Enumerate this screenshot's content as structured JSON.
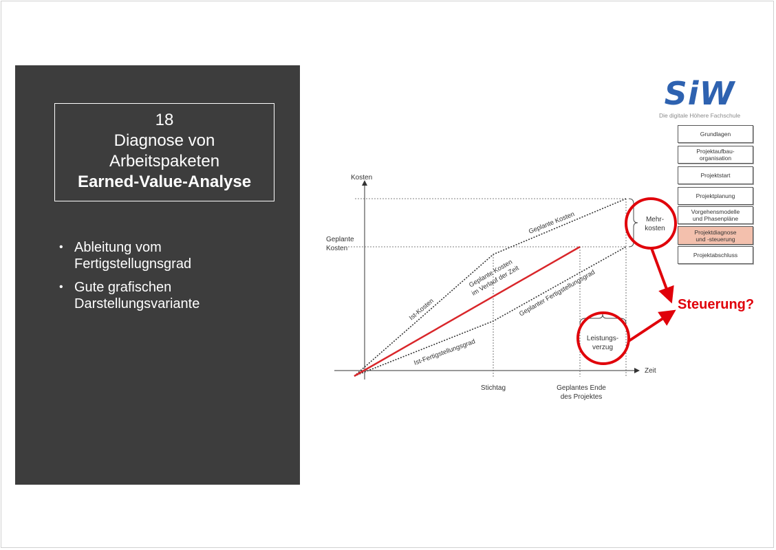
{
  "slide": {
    "title_number": "18",
    "title_line1": "Diagnose von",
    "title_line2": "Arbeitspaketen",
    "title_bold": "Earned-Value-Analyse",
    "bullets": [
      {
        "line1": "Ableitung vom",
        "line2": "Fertigstellugnsgrad"
      },
      {
        "line1": "Gute grafischen",
        "line2": "Darstellungsvariante"
      }
    ]
  },
  "logo": {
    "text": "SiW",
    "tagline": "Die digitale Höhere Fachschule",
    "color": "#2e62b0"
  },
  "nav": [
    {
      "label": "Grundlagen",
      "active": false
    },
    {
      "label": "Projektaufbau-\norganisation",
      "active": false
    },
    {
      "label": "Projektstart",
      "active": false
    },
    {
      "label": "Projektplanung",
      "active": false
    },
    {
      "label": "Vorgehensmodelle\nund Phasenpläne",
      "active": false
    },
    {
      "label": "Projektdiagnose\nund -steuerung",
      "active": true
    },
    {
      "label": "Projektabschluss",
      "active": false
    }
  ],
  "diagram": {
    "y_axis_label": "Kosten",
    "x_axis_label": "Zeit",
    "geplante_kosten_label_1": "Geplante",
    "geplante_kosten_label_2": "Kosten",
    "line_geplante_kosten": "Geplante Kosten",
    "line_ist_kosten": "Ist-Kosten",
    "line_verlauf_1": "Geplante Kosten",
    "line_verlauf_2": "im Verlauf der Zeit",
    "line_geplanter_fg": "Geplanter Fertigstellungsgrad",
    "line_ist_fg": "Ist-Fertigstellungsgrad",
    "mehrkosten_1": "Mehr-",
    "mehrkosten_2": "kosten",
    "leistungsverzug_1": "Leistungs-",
    "leistungsverzug_2": "verzug",
    "stichtag": "Stichtag",
    "ende_1": "Geplantes Ende",
    "ende_2": "des Projektes",
    "steuerung": "Steuerung?",
    "highlight_color": "#e0000a"
  }
}
